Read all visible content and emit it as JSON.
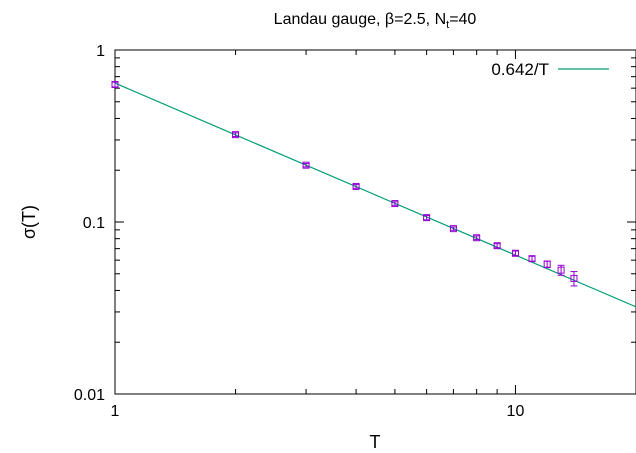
{
  "chart_data": {
    "type": "scatter",
    "title_main": "Landau gauge, β=2.5, N",
    "title_sub": "t",
    "title_tail": "=40",
    "xlabel": "T",
    "ylabel": "σ(T)",
    "x_scale": "log",
    "y_scale": "log",
    "xlim": [
      1,
      20
    ],
    "ylim": [
      0.01,
      1
    ],
    "x_ticks": [
      {
        "value": 1,
        "label": "1"
      },
      {
        "value": 10,
        "label": "10"
      }
    ],
    "y_ticks": [
      {
        "value": 0.01,
        "label": "0.01"
      },
      {
        "value": 0.1,
        "label": "0.1"
      },
      {
        "value": 1,
        "label": "1"
      }
    ],
    "grid": false,
    "legend_position": "top-right",
    "fit": {
      "name": "0.642/T",
      "coefficient": 0.642,
      "color": "#009e73"
    },
    "series": [
      {
        "color": "#9400d3",
        "marker": "square-with-errorbars",
        "points": [
          {
            "x": 1,
            "y": 0.63,
            "err": 0.02
          },
          {
            "x": 2,
            "y": 0.322,
            "err": 0.008
          },
          {
            "x": 3,
            "y": 0.214,
            "err": 0.005
          },
          {
            "x": 4,
            "y": 0.161,
            "err": 0.004
          },
          {
            "x": 5,
            "y": 0.128,
            "err": 0.003
          },
          {
            "x": 6,
            "y": 0.106,
            "err": 0.003
          },
          {
            "x": 7,
            "y": 0.0915,
            "err": 0.002
          },
          {
            "x": 8,
            "y": 0.081,
            "err": 0.002
          },
          {
            "x": 9,
            "y": 0.0728,
            "err": 0.002
          },
          {
            "x": 10,
            "y": 0.0658,
            "err": 0.002
          },
          {
            "x": 11,
            "y": 0.0612,
            "err": 0.002
          },
          {
            "x": 12,
            "y": 0.0568,
            "err": 0.0025
          },
          {
            "x": 13,
            "y": 0.0525,
            "err": 0.0035
          },
          {
            "x": 14,
            "y": 0.047,
            "err": 0.0045
          }
        ]
      }
    ]
  }
}
